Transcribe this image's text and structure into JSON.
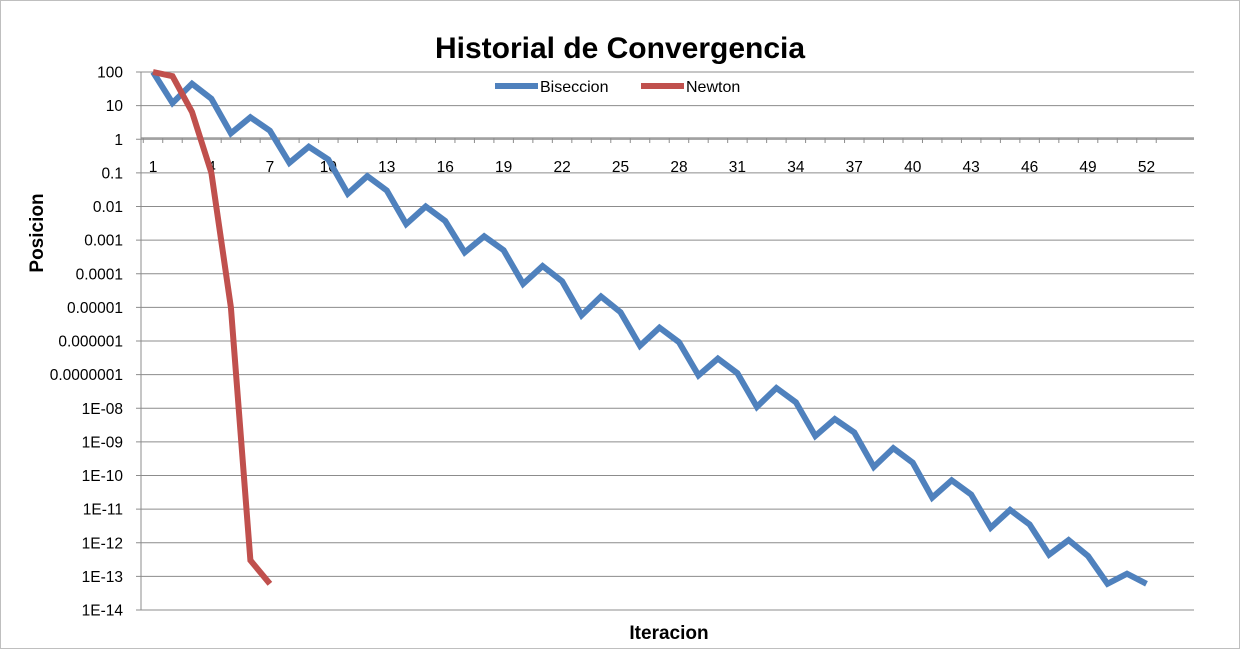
{
  "chart_data": {
    "type": "line",
    "title": "Historial de Convergencia",
    "xlabel": "Iteracion",
    "ylabel": "Posicion",
    "y_scale": "log",
    "ylim": [
      1e-14,
      100
    ],
    "xlim": [
      1,
      53
    ],
    "grid": "horizontal",
    "legend_position": "top",
    "y_tick_labels": [
      "100",
      "10",
      "1",
      "0.1",
      "0.01",
      "0.001",
      "0.0001",
      "0.00001",
      "0.000001",
      "0.0000001",
      "1E-08",
      "1E-09",
      "1E-10",
      "1E-11",
      "1E-12",
      "1E-13",
      "1E-14"
    ],
    "y_tick_values": [
      100,
      10,
      1,
      0.1,
      0.01,
      0.001,
      0.0001,
      1e-05,
      1e-06,
      1e-07,
      1e-08,
      1e-09,
      1e-10,
      1e-11,
      1e-12,
      1e-13,
      1e-14
    ],
    "x_tick_labels": [
      "1",
      "4",
      "7",
      "10",
      "13",
      "16",
      "19",
      "22",
      "25",
      "28",
      "31",
      "34",
      "37",
      "40",
      "43",
      "46",
      "49",
      "52"
    ],
    "x_tick_values": [
      1,
      4,
      7,
      10,
      13,
      16,
      19,
      22,
      25,
      28,
      31,
      34,
      37,
      40,
      43,
      46,
      49,
      52
    ],
    "series": [
      {
        "name": "Biseccion",
        "color": "#4f81bd",
        "x": [
          1,
          2,
          3,
          4,
          5,
          6,
          7,
          8,
          9,
          10,
          11,
          12,
          13,
          14,
          15,
          16,
          17,
          18,
          19,
          20,
          21,
          22,
          23,
          24,
          25,
          26,
          27,
          28,
          29,
          30,
          31,
          32,
          33,
          34,
          35,
          36,
          37,
          38,
          39,
          40,
          41,
          42,
          43,
          44,
          45,
          46,
          47,
          48,
          49,
          50,
          51,
          52
        ],
        "values": [
          100,
          12,
          45,
          16,
          1.5,
          4.5,
          1.8,
          0.2,
          0.6,
          0.25,
          0.024,
          0.08,
          0.03,
          0.003,
          0.01,
          0.0037,
          0.00043,
          0.0013,
          0.0005,
          5e-05,
          0.00017,
          6e-05,
          5.8e-06,
          2.1e-05,
          7.2e-06,
          7.2e-07,
          2.5e-06,
          9.2e-07,
          9.5e-08,
          3e-07,
          1.1e-07,
          1.1e-08,
          4e-08,
          1.5e-08,
          1.5e-09,
          4.8e-09,
          1.9e-09,
          1.8e-10,
          6.5e-10,
          2.4e-10,
          2.2e-11,
          7.2e-11,
          2.7e-11,
          2.8e-12,
          9.5e-12,
          3.5e-12,
          4.4e-13,
          1.2e-12,
          4e-13,
          6e-14,
          1.2e-13,
          6e-14
        ]
      },
      {
        "name": "Newton",
        "color": "#c0504d",
        "x": [
          1,
          2,
          3,
          4,
          5,
          6,
          7
        ],
        "values": [
          100,
          75,
          6.5,
          0.1,
          1e-05,
          3e-13,
          6e-14
        ]
      }
    ]
  }
}
